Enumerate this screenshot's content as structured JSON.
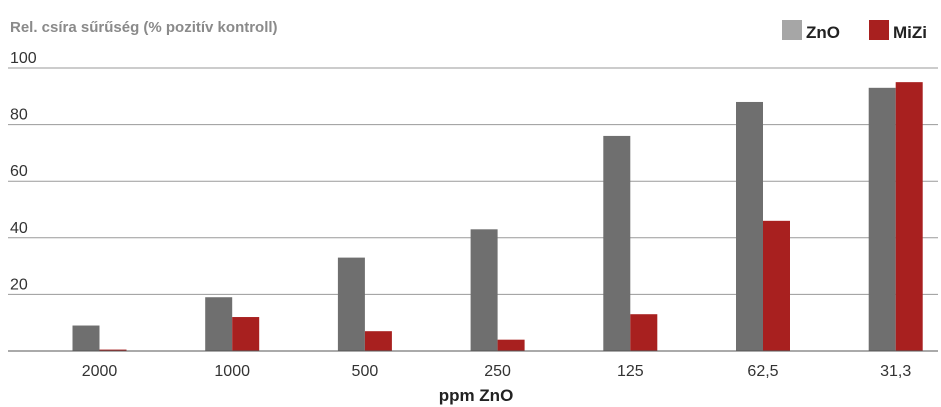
{
  "chart_data": {
    "type": "bar",
    "title": "",
    "ylabel": "Rel. csíra sűrűség (% pozitív kontroll)",
    "xlabel": "ppm ZnO",
    "ylim": [
      0,
      100
    ],
    "yticks": [
      "20",
      "40",
      "60",
      "80",
      "100"
    ],
    "categories": [
      "2000",
      "1000",
      "500",
      "250",
      "125",
      "62,5",
      "31,3"
    ],
    "series": [
      {
        "name": "ZnO",
        "color": "#6f6f6f",
        "values": [
          9,
          19,
          33,
          43,
          76,
          88,
          93
        ]
      },
      {
        "name": "MiZi",
        "color": "#a8201f",
        "values": [
          0.5,
          12,
          7,
          4,
          13,
          46,
          95
        ]
      }
    ],
    "grid": true,
    "legend": "top-right",
    "legend_swatch_colors": [
      "#a6a6a6",
      "#a8201f"
    ]
  }
}
